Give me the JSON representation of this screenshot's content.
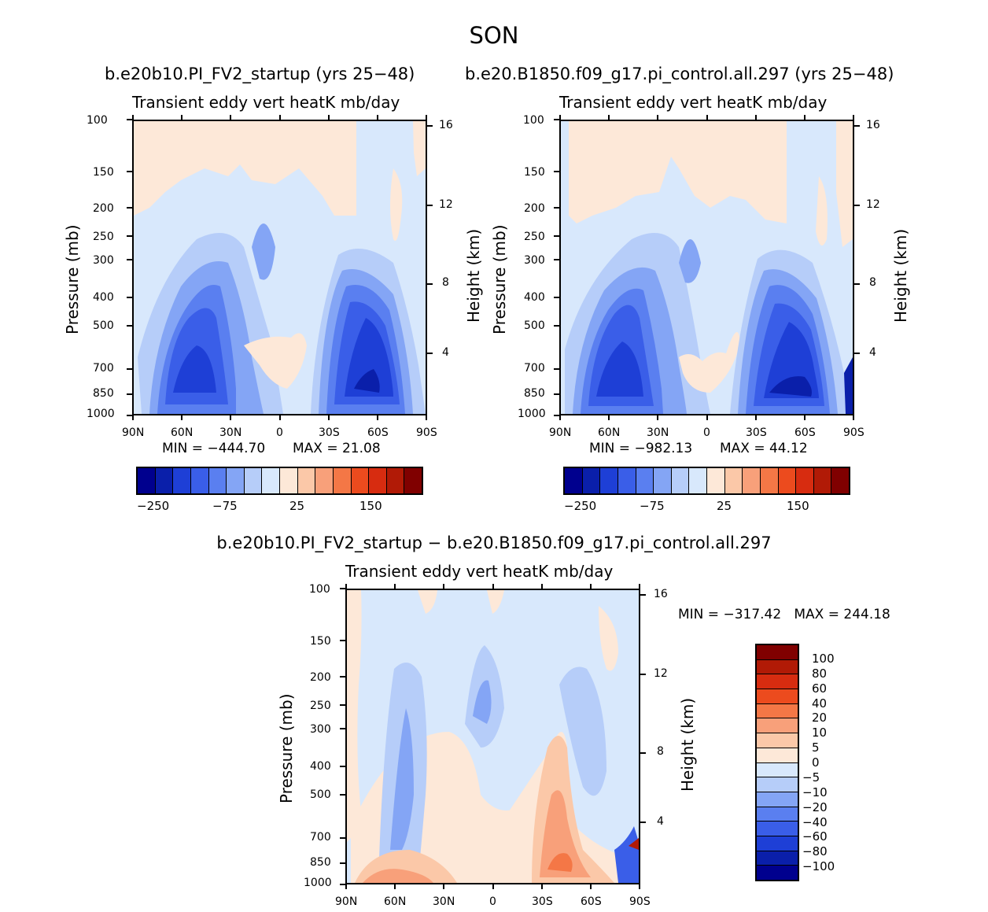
{
  "figure": {
    "title": "SON",
    "colors": {
      "diverging": [
        "#00008e",
        "#0a1faa",
        "#1e3fd6",
        "#3a5ee8",
        "#5a7ff0",
        "#84a5f5",
        "#b6cdf9",
        "#d8e8fc",
        "#fde8d8",
        "#fbc8a8",
        "#f8a07a",
        "#f47746",
        "#ec4b1e",
        "#d72c10",
        "#b11a06",
        "#800000"
      ],
      "diff_bar": [
        "#00008e",
        "#0a1faa",
        "#1e3fd6",
        "#3a5ee8",
        "#5a7ff0",
        "#84a5f5",
        "#b6cdf9",
        "#d8e8fc",
        "#fde8d8",
        "#fbc8a8",
        "#f8a07a",
        "#f47746",
        "#ec4b1e",
        "#d72c10",
        "#b11a06",
        "#800000"
      ]
    }
  },
  "chart_data": [
    {
      "id": "left",
      "type": "heatmap",
      "run_title": "b.e20b10.PI_FV2_startup (yrs 25-48)",
      "title": "Transient eddy vert heatK mb/day",
      "ylabel": "Pressure (mb)",
      "y2label": "Height (km)",
      "yticks": [
        "100",
        "150",
        "200",
        "250",
        "300",
        "400",
        "500",
        "700",
        "850",
        "1000"
      ],
      "y2ticks": [
        "16",
        "12",
        "8",
        "4"
      ],
      "xticks": [
        "90N",
        "60N",
        "30N",
        "0",
        "30S",
        "60S",
        "90S"
      ],
      "min_text": "MIN = -444.70",
      "max_text": "MAX = 21.08",
      "colorbar_labels": [
        "-250",
        "-75",
        "25",
        "150"
      ]
    },
    {
      "id": "right",
      "type": "heatmap",
      "run_title": "b.e20.B1850.f09_g17.pi_control.all.297 (yrs 25-48)",
      "title": "Transient eddy vert heatK mb/day",
      "ylabel": "Pressure (mb)",
      "y2label": "Height (km)",
      "yticks": [
        "100",
        "150",
        "200",
        "250",
        "300",
        "400",
        "500",
        "700",
        "850",
        "1000"
      ],
      "y2ticks": [
        "16",
        "12",
        "8",
        "4"
      ],
      "xticks": [
        "90N",
        "60N",
        "30N",
        "0",
        "30S",
        "60S",
        "90S"
      ],
      "min_text": "MIN = -982.13",
      "max_text": "MAX = 44.12",
      "colorbar_labels": [
        "-250",
        "-75",
        "25",
        "150"
      ]
    },
    {
      "id": "diff",
      "type": "heatmap",
      "run_title": "b.e20b10.PI_FV2_startup - b.e20.B1850.f09_g17.pi_control.all.297",
      "title": "Transient eddy vert heatK mb/day",
      "ylabel": "Pressure (mb)",
      "y2label": "Height (km)",
      "yticks": [
        "100",
        "150",
        "200",
        "250",
        "300",
        "400",
        "500",
        "700",
        "850",
        "1000"
      ],
      "y2ticks": [
        "16",
        "12",
        "8",
        "4"
      ],
      "xticks": [
        "90N",
        "60N",
        "30N",
        "0",
        "30S",
        "60S",
        "90S"
      ],
      "minmax_text": "MIN = -317.42   MAX = 244.18",
      "colorbar_labels": [
        "100",
        "80",
        "60",
        "40",
        "20",
        "10",
        "5",
        "0",
        "-5",
        "-10",
        "-20",
        "-40",
        "-60",
        "-80",
        "-100"
      ]
    }
  ]
}
